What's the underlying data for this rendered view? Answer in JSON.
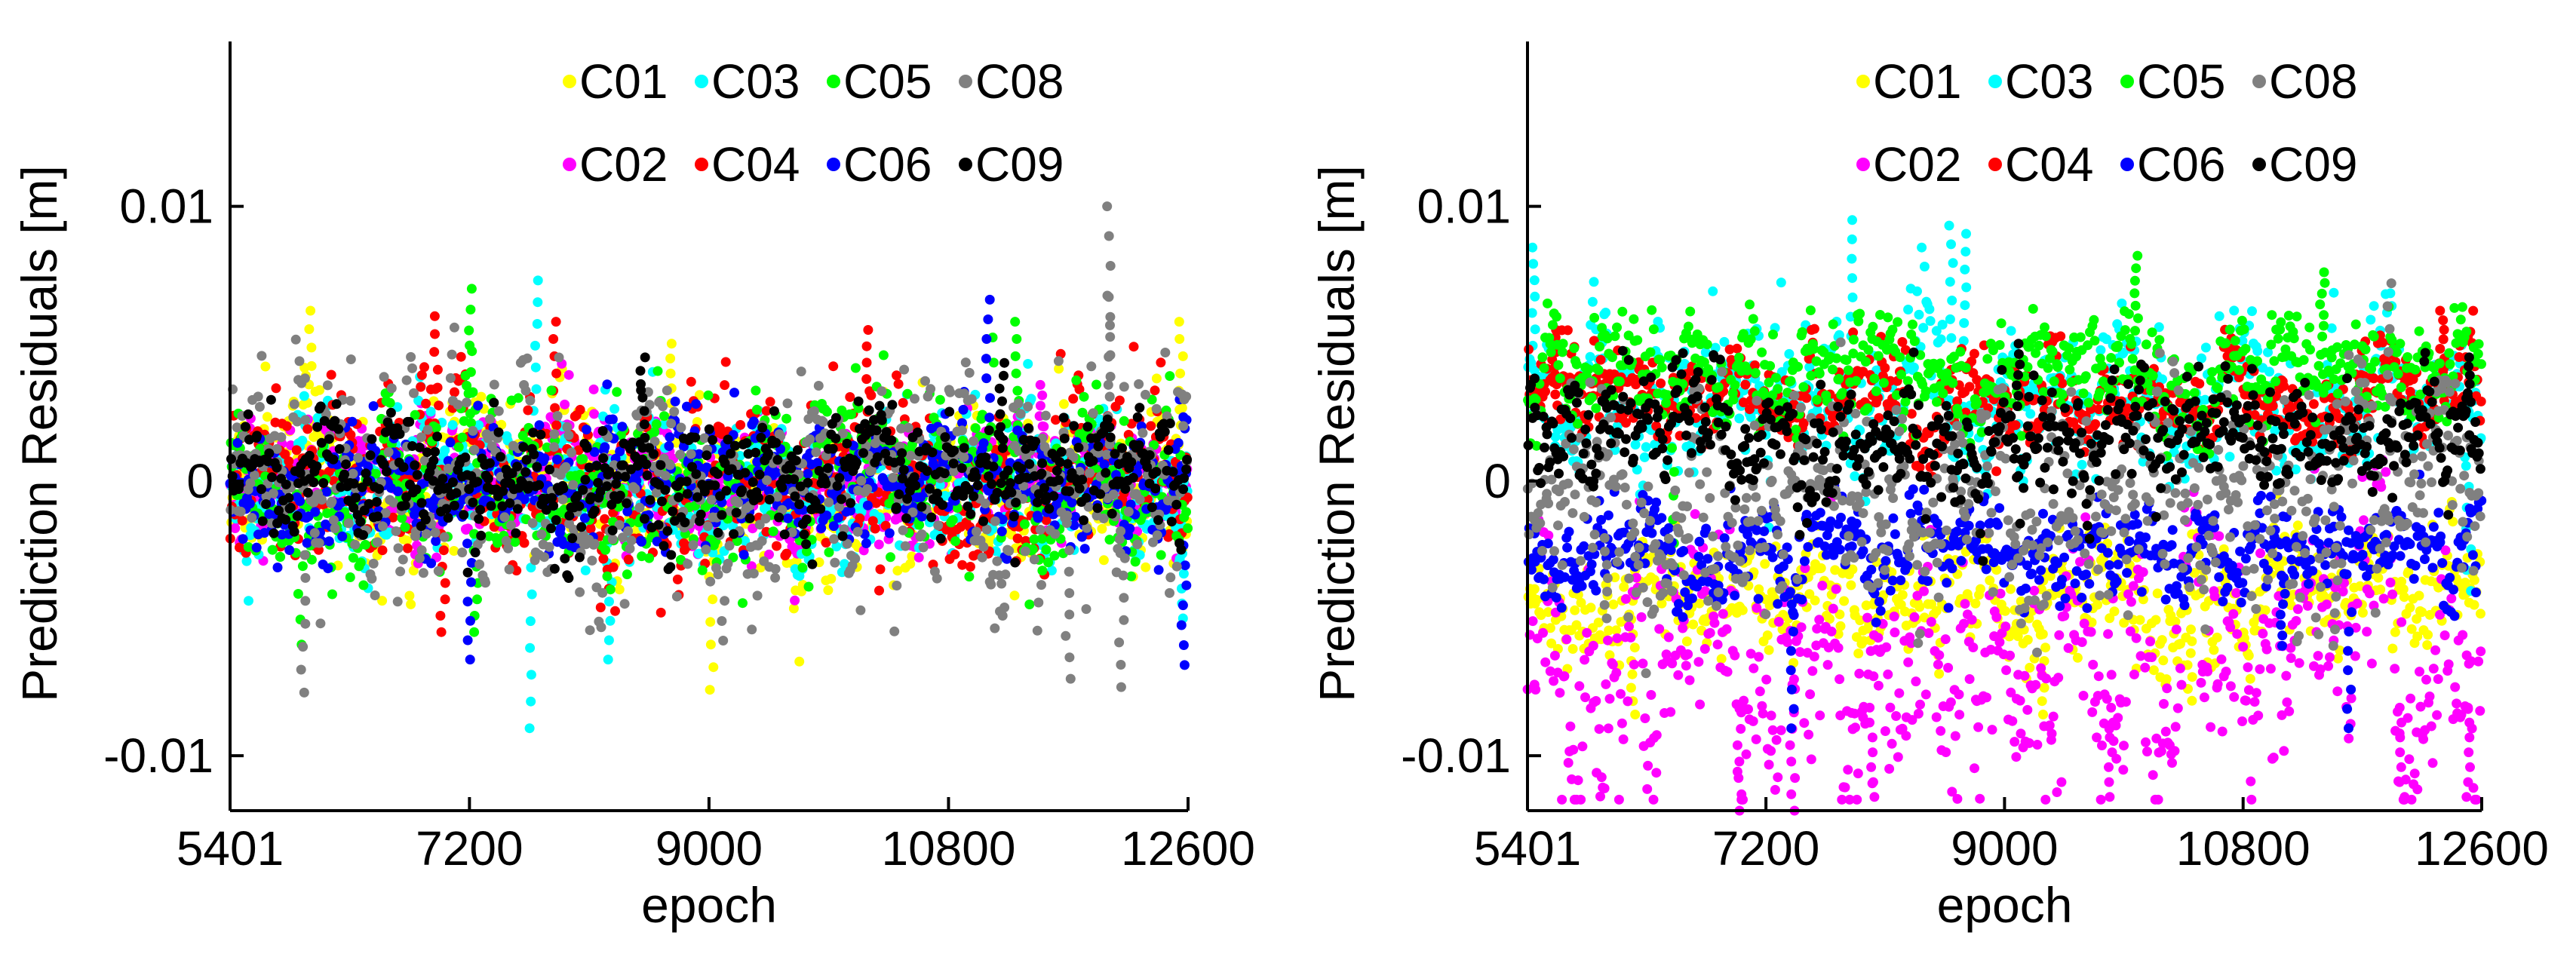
{
  "chart_data": [
    {
      "type": "scatter",
      "panel": "left",
      "xlabel": "epoch",
      "ylabel": "Prediction Residuals [m]",
      "xlim": [
        5401,
        12600
      ],
      "ylim": [
        -0.012,
        0.016
      ],
      "xticks": [
        5401,
        7200,
        9000,
        10800,
        12600
      ],
      "xtick_labels": [
        "5401",
        "7200",
        "9000",
        "10800",
        "12600"
      ],
      "yticks": [
        -0.01,
        0,
        0.01
      ],
      "ytick_labels": [
        "-0.01",
        "0",
        "0.01"
      ],
      "legend_rows": [
        [
          "C01",
          "C03",
          "C05",
          "C08"
        ],
        [
          "C02",
          "C04",
          "C06",
          "C09"
        ]
      ],
      "series": [
        {
          "name": "C01",
          "color": "#ffff00",
          "offset": 0.0,
          "spread": 0.0017,
          "spikes": [
            {
              "x": 9020,
              "y": -0.0076
            },
            {
              "x": 6000,
              "y": 0.0062
            },
            {
              "x": 12550,
              "y": 0.0058
            },
            {
              "x": 8700,
              "y": 0.005
            }
          ]
        },
        {
          "name": "C02",
          "color": "#ff00ff",
          "offset": 0.0,
          "spread": 0.0012,
          "spikes": [
            {
              "x": 6800,
              "y": -0.003
            },
            {
              "x": 11500,
              "y": 0.0035
            }
          ]
        },
        {
          "name": "C03",
          "color": "#00ffff",
          "offset": 0.0,
          "spread": 0.0015,
          "spikes": [
            {
              "x": 7650,
              "y": -0.009
            },
            {
              "x": 7700,
              "y": 0.0073
            },
            {
              "x": 8250,
              "y": -0.0065
            },
            {
              "x": 12550,
              "y": -0.005
            }
          ]
        },
        {
          "name": "C04",
          "color": "#ff0000",
          "offset": 0.0,
          "spread": 0.0017,
          "spikes": [
            {
              "x": 6950,
              "y": 0.006
            },
            {
              "x": 7850,
              "y": 0.0058
            },
            {
              "x": 10200,
              "y": 0.0055
            },
            {
              "x": 7000,
              "y": -0.0055
            }
          ]
        },
        {
          "name": "C05",
          "color": "#00ff00",
          "offset": 0.0,
          "spread": 0.0018,
          "spikes": [
            {
              "x": 7200,
              "y": 0.007
            },
            {
              "x": 7250,
              "y": -0.0055
            },
            {
              "x": 11300,
              "y": 0.0058
            }
          ]
        },
        {
          "name": "C06",
          "color": "#0000ff",
          "offset": 0.0,
          "spread": 0.0013,
          "spikes": [
            {
              "x": 7200,
              "y": -0.0065
            },
            {
              "x": 11100,
              "y": 0.0066
            },
            {
              "x": 12570,
              "y": -0.0067
            }
          ]
        },
        {
          "name": "C08",
          "color": "#808080",
          "offset": 0.0,
          "spread": 0.0022,
          "spikes": [
            {
              "x": 12000,
              "y": 0.01
            },
            {
              "x": 12010,
              "y": 0.0067
            },
            {
              "x": 5950,
              "y": -0.0077
            },
            {
              "x": 12100,
              "y": -0.0075
            },
            {
              "x": 11700,
              "y": -0.0072
            }
          ]
        },
        {
          "name": "C09",
          "color": "#000000",
          "offset": 0.0,
          "spread": 0.0012,
          "spikes": [
            {
              "x": 8500,
              "y": 0.0045
            },
            {
              "x": 11200,
              "y": 0.0043
            }
          ]
        }
      ]
    },
    {
      "type": "scatter",
      "panel": "right",
      "xlabel": "epoch",
      "ylabel": "Prediction Residuals [m]",
      "xlim": [
        5401,
        12600
      ],
      "ylim": [
        -0.012,
        0.016
      ],
      "xticks": [
        5401,
        7200,
        9000,
        10800,
        12600
      ],
      "xtick_labels": [
        "5401",
        "7200",
        "9000",
        "10800",
        "12600"
      ],
      "yticks": [
        -0.01,
        0,
        0.01
      ],
      "ytick_labels": [
        "-0.01",
        "0",
        "0.01"
      ],
      "legend_rows": [
        [
          "C01",
          "C03",
          "C05",
          "C08"
        ],
        [
          "C02",
          "C04",
          "C06",
          "C09"
        ]
      ],
      "series": [
        {
          "name": "C01",
          "color": "#ffff00",
          "offset": -0.004,
          "spread": 0.0012,
          "spikes": [
            {
              "x": 6200,
              "y": -0.0085
            },
            {
              "x": 9300,
              "y": -0.0085
            },
            {
              "x": 10400,
              "y": -0.008
            }
          ]
        },
        {
          "name": "C02",
          "color": "#ff00ff",
          "offset": -0.0065,
          "spread": 0.0025,
          "spikes": [
            {
              "x": 7000,
              "y": -0.012
            },
            {
              "x": 7400,
              "y": -0.012
            },
            {
              "x": 8000,
              "y": -0.0115
            },
            {
              "x": 9800,
              "y": -0.0115
            },
            {
              "x": 12000,
              "y": -0.0115
            },
            {
              "x": 12500,
              "y": -0.0115
            }
          ]
        },
        {
          "name": "C03",
          "color": "#00ffff",
          "offset": 0.003,
          "spread": 0.0015,
          "spikes": [
            {
              "x": 5450,
              "y": 0.0085
            },
            {
              "x": 7850,
              "y": 0.0095
            },
            {
              "x": 8600,
              "y": 0.0093
            },
            {
              "x": 8700,
              "y": 0.009
            },
            {
              "x": 12500,
              "y": -0.004
            }
          ]
        },
        {
          "name": "C04",
          "color": "#ff0000",
          "offset": 0.003,
          "spread": 0.001,
          "spikes": [
            {
              "x": 5600,
              "y": 0.0055
            },
            {
              "x": 12300,
              "y": 0.0062
            }
          ]
        },
        {
          "name": "C05",
          "color": "#00ff00",
          "offset": 0.004,
          "spread": 0.0012,
          "spikes": [
            {
              "x": 10000,
              "y": 0.0082
            },
            {
              "x": 11400,
              "y": 0.0076
            },
            {
              "x": 6500,
              "y": -0.004
            }
          ]
        },
        {
          "name": "C06",
          "color": "#0000ff",
          "offset": -0.0025,
          "spread": 0.001,
          "spikes": [
            {
              "x": 7400,
              "y": -0.009
            },
            {
              "x": 11600,
              "y": -0.009
            },
            {
              "x": 11100,
              "y": -0.006
            }
          ]
        },
        {
          "name": "C08",
          "color": "#808080",
          "offset": -0.0005,
          "spread": 0.0022,
          "spikes": [
            {
              "x": 11900,
              "y": 0.0072
            },
            {
              "x": 11500,
              "y": -0.006
            },
            {
              "x": 6000,
              "y": -0.005
            }
          ]
        },
        {
          "name": "C09",
          "color": "#000000",
          "offset": 0.0015,
          "spread": 0.0012,
          "spikes": [
            {
              "x": 9100,
              "y": 0.005
            },
            {
              "x": 12500,
              "y": 0.0045
            }
          ]
        }
      ]
    }
  ]
}
